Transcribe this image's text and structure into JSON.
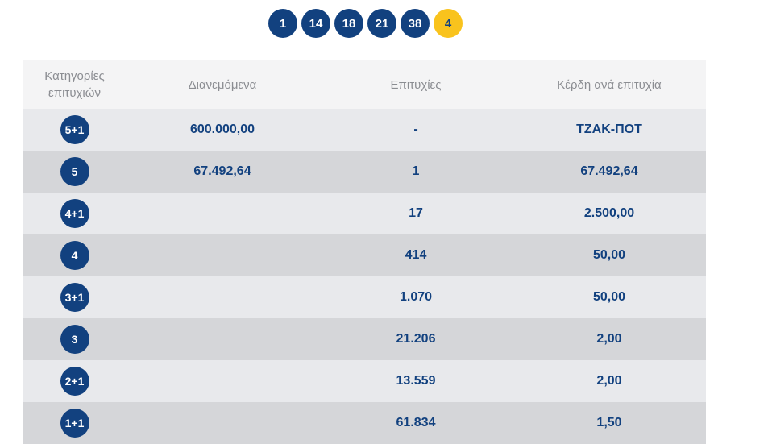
{
  "drawn_numbers": [
    "1",
    "14",
    "18",
    "21",
    "38"
  ],
  "joker_number": "4",
  "headers": {
    "category": "Κατηγορίες επιτυχιών",
    "distributed": "Διανεμόμενα",
    "winners": "Επιτυχίες",
    "prize": "Κέρδη ανά επιτυχία"
  },
  "rows": [
    {
      "category": "5+1",
      "distributed": "600.000,00",
      "winners": "-",
      "prize": "ΤΖΑΚ-ΠΟΤ"
    },
    {
      "category": "5",
      "distributed": "67.492,64",
      "winners": "1",
      "prize": "67.492,64"
    },
    {
      "category": "4+1",
      "distributed": "",
      "winners": "17",
      "prize": "2.500,00"
    },
    {
      "category": "4",
      "distributed": "",
      "winners": "414",
      "prize": "50,00"
    },
    {
      "category": "3+1",
      "distributed": "",
      "winners": "1.070",
      "prize": "50,00"
    },
    {
      "category": "3",
      "distributed": "",
      "winners": "21.206",
      "prize": "2,00"
    },
    {
      "category": "2+1",
      "distributed": "",
      "winners": "13.559",
      "prize": "2,00"
    },
    {
      "category": "1+1",
      "distributed": "",
      "winners": "61.834",
      "prize": "1,50"
    }
  ],
  "colors": {
    "primary": "#12417f",
    "joker": "#f9c31d",
    "row_light": "#e8e9ec",
    "row_dark": "#d5d6d9",
    "header_bg": "#f4f4f5"
  }
}
